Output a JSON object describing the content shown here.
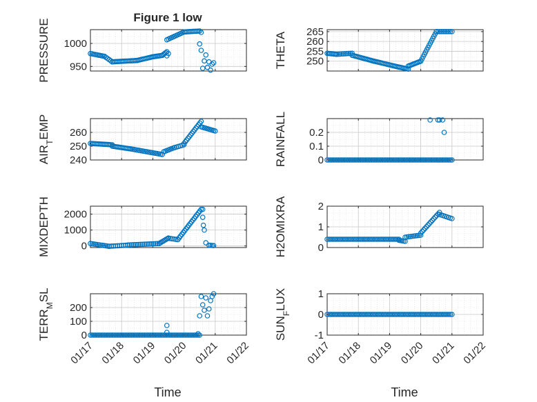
{
  "figure": {
    "title": "Figure 1 low",
    "marker_color": "#0072BD",
    "axis_color": "#262626",
    "grid_color": "#d9d9d9",
    "x_tick_labels": [
      "01/17",
      "01/18",
      "01/19",
      "01/20",
      "01/21",
      "01/22"
    ],
    "x_label_left": "Time",
    "x_label_right": "Time"
  },
  "chart_data": [
    {
      "type": "scatter",
      "ylabel": "PRESSURE",
      "xlim": [
        17,
        22
      ],
      "ylim": [
        940,
        1030
      ],
      "yticks": [
        950,
        1000
      ],
      "ytick_labels": [
        "950",
        "1000"
      ],
      "grid": true,
      "segments": [
        {
          "x0": 17.0,
          "x1": 17.45,
          "y0": 978,
          "y1": 972,
          "n": 10
        },
        {
          "x0": 17.45,
          "x1": 17.7,
          "y0": 972,
          "y1": 960,
          "n": 6
        },
        {
          "x0": 17.7,
          "x1": 18.5,
          "y0": 960,
          "y1": 963,
          "n": 18
        },
        {
          "x0": 18.5,
          "x1": 19.0,
          "y0": 963,
          "y1": 971,
          "n": 12
        },
        {
          "x0": 19.0,
          "x1": 19.3,
          "y0": 971,
          "y1": 974,
          "n": 8
        },
        {
          "x0": 19.3,
          "x1": 19.45,
          "y0": 974,
          "y1": 982,
          "n": 5
        },
        {
          "x0": 19.45,
          "x1": 20.0,
          "y0": 1008,
          "y1": 1025,
          "n": 12
        },
        {
          "x0": 20.0,
          "x1": 20.5,
          "y0": 1025,
          "y1": 1027,
          "n": 12
        }
      ],
      "points": [
        [
          19.45,
          973
        ],
        [
          19.5,
          978
        ],
        [
          20.55,
          1024
        ],
        [
          20.5,
          999
        ],
        [
          20.55,
          985
        ],
        [
          20.6,
          946
        ],
        [
          20.65,
          962
        ],
        [
          20.7,
          975
        ],
        [
          20.75,
          948
        ],
        [
          20.8,
          960
        ],
        [
          20.85,
          942
        ],
        [
          20.9,
          955
        ],
        [
          20.95,
          958
        ]
      ]
    },
    {
      "type": "scatter",
      "ylabel": "THETA",
      "xlim": [
        17,
        22
      ],
      "ylim": [
        245,
        266
      ],
      "yticks": [
        250,
        255,
        260,
        265
      ],
      "ytick_labels": [
        "250",
        "255",
        "260",
        "265"
      ],
      "grid": true,
      "segments": [
        {
          "x0": 17.0,
          "x1": 17.3,
          "y0": 254,
          "y1": 253.5,
          "n": 8
        },
        {
          "x0": 17.3,
          "x1": 17.8,
          "y0": 253.5,
          "y1": 254,
          "n": 10
        },
        {
          "x0": 17.8,
          "x1": 18.5,
          "y0": 253,
          "y1": 250,
          "n": 16
        },
        {
          "x0": 18.5,
          "x1": 19.3,
          "y0": 250,
          "y1": 247,
          "n": 18
        },
        {
          "x0": 19.3,
          "x1": 19.6,
          "y0": 247,
          "y1": 246,
          "n": 8
        },
        {
          "x0": 19.6,
          "x1": 20.0,
          "y0": 247.5,
          "y1": 250,
          "n": 10
        },
        {
          "x0": 20.0,
          "x1": 20.5,
          "y0": 250,
          "y1": 265,
          "n": 14
        },
        {
          "x0": 20.5,
          "x1": 21.0,
          "y0": 265,
          "y1": 265,
          "n": 10
        }
      ],
      "points": []
    },
    {
      "type": "scatter",
      "ylabel": "AIR_TEMP",
      "xlim": [
        17,
        22
      ],
      "ylim": [
        240,
        270
      ],
      "yticks": [
        240,
        250,
        260
      ],
      "ytick_labels": [
        "240",
        "250",
        "260"
      ],
      "grid": true,
      "segments": [
        {
          "x0": 17.0,
          "x1": 17.7,
          "y0": 252,
          "y1": 251,
          "n": 16
        },
        {
          "x0": 17.7,
          "x1": 18.3,
          "y0": 250,
          "y1": 248,
          "n": 14
        },
        {
          "x0": 18.3,
          "x1": 19.3,
          "y0": 248,
          "y1": 244,
          "n": 20
        },
        {
          "x0": 19.35,
          "x1": 19.7,
          "y0": 246,
          "y1": 249,
          "n": 8
        },
        {
          "x0": 19.7,
          "x1": 20.0,
          "y0": 249,
          "y1": 251,
          "n": 6
        },
        {
          "x0": 20.0,
          "x1": 20.55,
          "y0": 252,
          "y1": 268,
          "n": 14
        },
        {
          "x0": 20.55,
          "x1": 21.0,
          "y0": 264,
          "y1": 261,
          "n": 10
        }
      ],
      "points": [
        [
          19.3,
          244
        ]
      ]
    },
    {
      "type": "scatter",
      "ylabel": "RAINFALL",
      "xlim": [
        17,
        22
      ],
      "ylim": [
        0,
        0.3
      ],
      "yticks": [
        0,
        0.1,
        0.2
      ],
      "ytick_labels": [
        "0",
        "0.1",
        "0.2"
      ],
      "grid": true,
      "segments": [
        {
          "x0": 17.0,
          "x1": 21.0,
          "y0": 0,
          "y1": 0,
          "n": 80
        }
      ],
      "points": [
        [
          20.3,
          0.29
        ],
        [
          20.55,
          0.29
        ],
        [
          20.6,
          0.29
        ],
        [
          20.7,
          0.29
        ],
        [
          20.75,
          0.2
        ]
      ]
    },
    {
      "type": "scatter",
      "ylabel": "MIXDEPTH",
      "xlim": [
        17,
        22
      ],
      "ylim": [
        -100,
        2500
      ],
      "yticks": [
        0,
        1000,
        2000
      ],
      "ytick_labels": [
        "0",
        "1000",
        "2000"
      ],
      "grid": true,
      "segments": [
        {
          "x0": 17.0,
          "x1": 17.6,
          "y0": 150,
          "y1": -20,
          "n": 12
        },
        {
          "x0": 17.6,
          "x1": 18.2,
          "y0": -20,
          "y1": 50,
          "n": 10
        },
        {
          "x0": 18.2,
          "x1": 19.2,
          "y0": 60,
          "y1": 150,
          "n": 18
        },
        {
          "x0": 19.2,
          "x1": 19.5,
          "y0": 150,
          "y1": 500,
          "n": 8
        },
        {
          "x0": 19.5,
          "x1": 19.8,
          "y0": 480,
          "y1": 400,
          "n": 6
        },
        {
          "x0": 19.8,
          "x1": 20.55,
          "y0": 400,
          "y1": 2300,
          "n": 18
        }
      ],
      "points": [
        [
          20.6,
          2300
        ],
        [
          20.6,
          1800
        ],
        [
          20.62,
          1300
        ],
        [
          20.65,
          1000
        ],
        [
          20.7,
          200
        ],
        [
          20.8,
          50
        ],
        [
          20.85,
          40
        ],
        [
          20.9,
          30
        ],
        [
          20.95,
          20
        ]
      ]
    },
    {
      "type": "scatter",
      "ylabel": "H2OMIXRA",
      "xlim": [
        17,
        22
      ],
      "ylim": [
        0,
        2
      ],
      "yticks": [
        0,
        1,
        2
      ],
      "ytick_labels": [
        "0",
        "1",
        "2"
      ],
      "grid": true,
      "segments": [
        {
          "x0": 17.0,
          "x1": 19.3,
          "y0": 0.4,
          "y1": 0.4,
          "n": 46
        },
        {
          "x0": 19.3,
          "x1": 19.5,
          "y0": 0.35,
          "y1": 0.3,
          "n": 5
        },
        {
          "x0": 19.5,
          "x1": 20.0,
          "y0": 0.5,
          "y1": 0.6,
          "n": 10
        },
        {
          "x0": 20.0,
          "x1": 20.6,
          "y0": 0.7,
          "y1": 1.7,
          "n": 14
        },
        {
          "x0": 20.6,
          "x1": 21.0,
          "y0": 1.6,
          "y1": 1.4,
          "n": 8
        }
      ],
      "points": []
    },
    {
      "type": "scatter",
      "ylabel": "TERR_MSL",
      "xlim": [
        17,
        22
      ],
      "ylim": [
        0,
        300
      ],
      "yticks": [
        0,
        100,
        200
      ],
      "ytick_labels": [
        "0",
        "100",
        "200"
      ],
      "grid": true,
      "segments": [
        {
          "x0": 17.0,
          "x1": 20.5,
          "y0": 0,
          "y1": 0,
          "n": 70
        }
      ],
      "points": [
        [
          19.45,
          70
        ],
        [
          19.45,
          20
        ],
        [
          20.45,
          10
        ],
        [
          20.5,
          140
        ],
        [
          20.55,
          280
        ],
        [
          20.6,
          220
        ],
        [
          20.65,
          180
        ],
        [
          20.7,
          270
        ],
        [
          20.75,
          140
        ],
        [
          20.8,
          190
        ],
        [
          20.85,
          250
        ],
        [
          20.9,
          280
        ],
        [
          20.95,
          300
        ]
      ]
    },
    {
      "type": "scatter",
      "ylabel": "SUN_FLUX",
      "xlim": [
        17,
        22
      ],
      "ylim": [
        -1,
        1
      ],
      "yticks": [
        -1,
        0,
        1
      ],
      "ytick_labels": [
        "-1",
        "0",
        "1"
      ],
      "grid": true,
      "segments": [
        {
          "x0": 17.0,
          "x1": 21.0,
          "y0": 0,
          "y1": 0,
          "n": 80
        }
      ],
      "points": []
    }
  ]
}
